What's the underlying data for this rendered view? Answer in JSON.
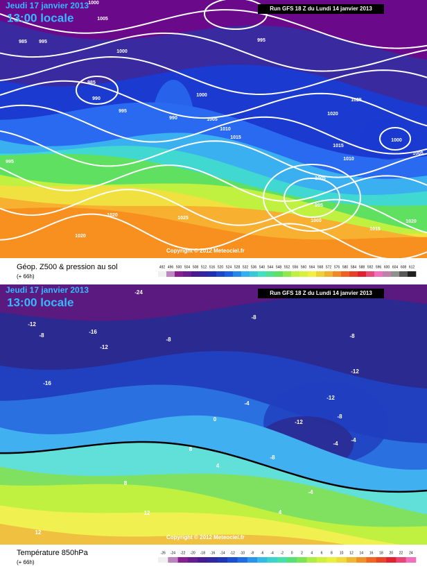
{
  "panels": [
    {
      "date": "Jeudi 17 janvier 2013",
      "time": "13:00 locale",
      "run": "Run GFS 18 Z du Lundi 14 janvier 2013",
      "copyright": "Copyright © 2012 Meteociel.fr",
      "caption": "Géop. Z500 & pression au sol",
      "lead": "(+ 66h)",
      "scale": [
        492,
        496,
        500,
        504,
        508,
        512,
        516,
        520,
        524,
        528,
        532,
        536,
        540,
        544,
        548,
        552,
        556,
        560,
        564,
        568,
        572,
        576,
        580,
        584,
        588,
        592,
        596,
        600,
        604,
        608,
        612
      ],
      "contour_labels": [
        "1000",
        "1005",
        "985",
        "995",
        "1000",
        "985",
        "990",
        "995",
        "1000",
        "990",
        "1005",
        "1010",
        "1015",
        "995",
        "1020",
        "1025",
        "1000",
        "1015",
        "1010",
        "1005",
        "995",
        "1000",
        "1020",
        "1025",
        "1020",
        "1015",
        "1020",
        "1005",
        "995"
      ]
    },
    {
      "date": "Jeudi 17 janvier 2013",
      "time": "13:00 locale",
      "run": "Run GFS 18 Z du Lundi 14 janvier 2013",
      "copyright": "Copyright © 2012 Meteociel.fr",
      "caption": "Température 850hPa",
      "lead": "(+ 66h)",
      "scale": [
        -26,
        -24,
        -22,
        -20,
        -18,
        -16,
        -14,
        -12,
        -10,
        -8,
        -6,
        -4,
        -2,
        0,
        2,
        4,
        6,
        8,
        10,
        12,
        14,
        16,
        18,
        20,
        22,
        24
      ],
      "contour_labels": [
        "-24",
        "-12",
        "-8",
        "-16",
        "-12",
        "-8",
        "-8",
        "-16",
        "-8",
        "-12",
        "-12",
        "-12",
        "-8",
        "-4",
        "0",
        "4",
        "8",
        "-4",
        "-4",
        "8",
        "12",
        "12",
        "4",
        "-4",
        "-8"
      ]
    }
  ]
}
